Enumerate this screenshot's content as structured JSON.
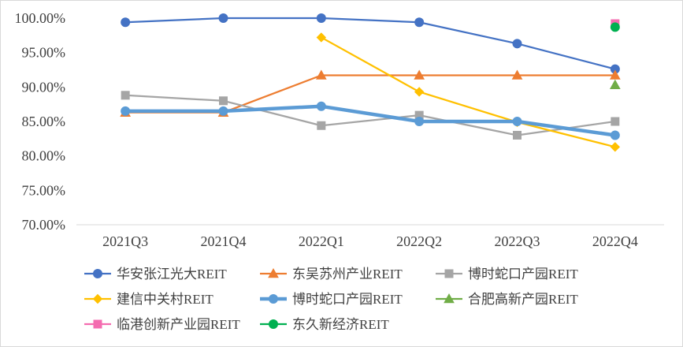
{
  "chart_data": {
    "type": "line",
    "categories": [
      "2021Q3",
      "2021Q4",
      "2022Q1",
      "2022Q2",
      "2022Q3",
      "2022Q4"
    ],
    "ylim": [
      70,
      100
    ],
    "yticks": [
      70,
      75,
      80,
      85,
      90,
      95,
      100
    ],
    "ytick_labels": [
      "70.00%",
      "75.00%",
      "80.00%",
      "85.00%",
      "90.00%",
      "95.00%",
      "100.00%"
    ],
    "grid": false,
    "legend": "bottom",
    "series": [
      {
        "name": "华安张江光大REIT",
        "color": "#4472C4",
        "marker": "circle",
        "values": [
          99.4,
          100.0,
          100.0,
          99.4,
          96.3,
          92.6
        ]
      },
      {
        "name": "东吴苏州产业REIT",
        "color": "#ED7D31",
        "marker": "triangle",
        "values": [
          86.3,
          86.3,
          91.7,
          91.7,
          91.7,
          91.7
        ]
      },
      {
        "name": "博时蛇口产园REIT",
        "color": "#A5A5A5",
        "marker": "square",
        "values": [
          88.8,
          88.0,
          84.4,
          85.9,
          83.0,
          85.0
        ]
      },
      {
        "name": "建信中关村REIT",
        "color": "#FFC000",
        "marker": "diamond",
        "values": [
          null,
          null,
          97.2,
          89.3,
          84.9,
          81.3
        ]
      },
      {
        "name": "博时蛇口产园REIT",
        "color": "#5B9BD5",
        "marker": "circle",
        "values": [
          86.5,
          86.5,
          87.2,
          85.0,
          85.0,
          83.0
        ]
      },
      {
        "name": "合肥高新产园REIT",
        "color": "#70AD47",
        "marker": "triangle",
        "values": [
          null,
          null,
          null,
          null,
          null,
          90.3
        ]
      },
      {
        "name": "临港创新产业园REIT",
        "color": "#F46CB0",
        "marker": "square",
        "values": [
          null,
          null,
          null,
          null,
          null,
          99.2
        ]
      },
      {
        "name": "东久新经济REIT",
        "color": "#00B050",
        "marker": "circle",
        "values": [
          null,
          null,
          null,
          null,
          null,
          98.7
        ]
      }
    ]
  }
}
